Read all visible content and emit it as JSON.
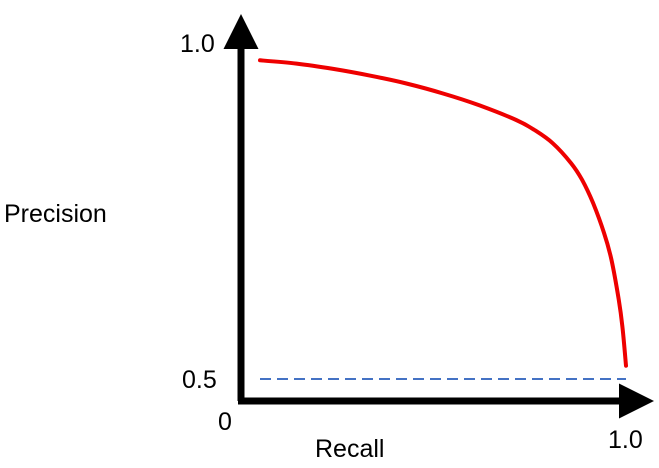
{
  "chart_data": {
    "type": "line",
    "xlabel": "Recall",
    "ylabel": "Precision",
    "origin_label": "0",
    "x_tick_labels": [
      "1.0"
    ],
    "y_tick_labels": [
      "1.0",
      "0.5"
    ],
    "xlim": [
      0,
      1.0
    ],
    "ylim": [
      0.5,
      1.0
    ],
    "grid": false,
    "series": [
      {
        "style": "solid",
        "color": "#ee0000",
        "x": [
          0.0,
          0.1,
          0.2,
          0.3,
          0.4,
          0.5,
          0.6,
          0.7,
          0.75,
          0.8,
          0.85,
          0.88,
          0.91,
          0.94,
          0.96,
          0.98,
          0.99,
          1.0
        ],
        "y": [
          0.98,
          0.975,
          0.967,
          0.957,
          0.945,
          0.93,
          0.912,
          0.89,
          0.875,
          0.855,
          0.825,
          0.8,
          0.765,
          0.72,
          0.68,
          0.62,
          0.58,
          0.52
        ]
      },
      {
        "style": "dashed",
        "color": "#4472c4",
        "x": [
          0.0,
          1.0
        ],
        "y": [
          0.5,
          0.5
        ]
      }
    ]
  }
}
